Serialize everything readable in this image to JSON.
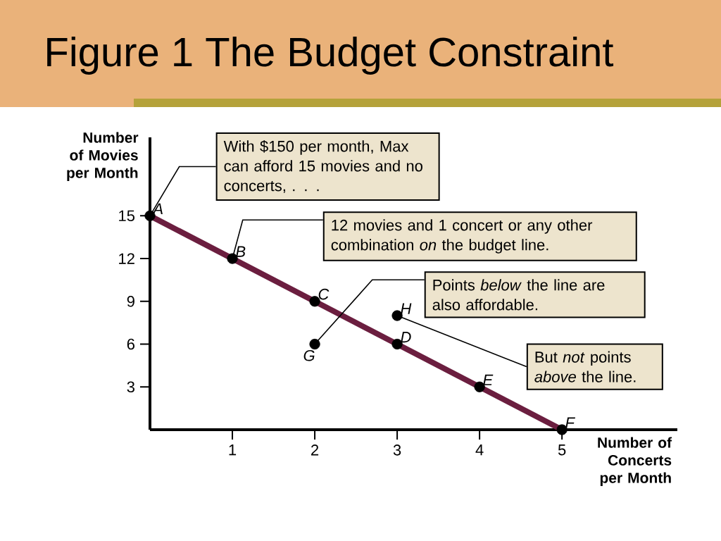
{
  "chart_data": {
    "type": "line",
    "title": "Figure 1 The Budget Constraint",
    "xlabel": "Number of Concerts per Month",
    "ylabel": "Number of Movies per Month",
    "xlim": [
      0,
      6.4
    ],
    "ylim": [
      0,
      20.5
    ],
    "xticks": [
      1,
      2,
      3,
      4,
      5
    ],
    "yticks": [
      3,
      6,
      9,
      12,
      15
    ],
    "series": [
      {
        "color": "#6b1e3f",
        "x": [
          0,
          5
        ],
        "values": [
          15,
          0
        ]
      },
      {
        "type": "scatter",
        "color": "#000000",
        "x": [
          0,
          1,
          2,
          3,
          4,
          5,
          2,
          3
        ],
        "values": [
          15,
          12,
          9,
          6,
          3,
          0,
          6,
          8
        ],
        "value_labels": [
          "A",
          "B",
          "C",
          "D",
          "E",
          "F",
          "G",
          "H"
        ]
      }
    ],
    "annotations": [
      {
        "text": "With $150 per month, Max can afford 15 movies and no concerts, . . .",
        "x": 0,
        "y": 15
      },
      {
        "text": "12 movies and 1 concert or any other combination *on* the budget line.",
        "x": 1,
        "y": 12
      },
      {
        "text": "Points *below* the line are also affordable.",
        "x": 2,
        "y": 6
      },
      {
        "text": "But *not* points *above* the line.",
        "x": 3,
        "y": 8
      }
    ]
  }
}
